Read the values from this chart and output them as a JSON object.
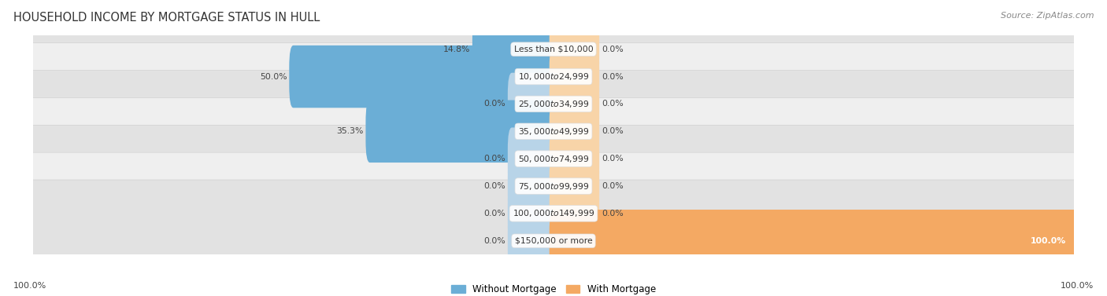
{
  "title": "HOUSEHOLD INCOME BY MORTGAGE STATUS IN HULL",
  "source": "Source: ZipAtlas.com",
  "categories": [
    "Less than $10,000",
    "$10,000 to $24,999",
    "$25,000 to $34,999",
    "$35,000 to $49,999",
    "$50,000 to $74,999",
    "$75,000 to $99,999",
    "$100,000 to $149,999",
    "$150,000 or more"
  ],
  "without_mortgage": [
    14.8,
    50.0,
    0.0,
    35.3,
    0.0,
    0.0,
    0.0,
    0.0
  ],
  "with_mortgage": [
    0.0,
    0.0,
    0.0,
    0.0,
    0.0,
    0.0,
    0.0,
    100.0
  ],
  "without_mortgage_color": "#6baed6",
  "with_mortgage_color": "#f4a963",
  "without_mortgage_color_light": "#b8d4e8",
  "with_mortgage_color_light": "#f8d4a8",
  "row_bg_odd": "#efefef",
  "row_bg_even": "#e2e2e2",
  "label_color": "#444444",
  "title_color": "#333333",
  "source_color": "#888888",
  "axis_max": 100.0,
  "stub_min": 8.0,
  "legend_labels": [
    "Without Mortgage",
    "With Mortgage"
  ],
  "bottom_left_label": "100.0%",
  "bottom_right_label": "100.0%"
}
